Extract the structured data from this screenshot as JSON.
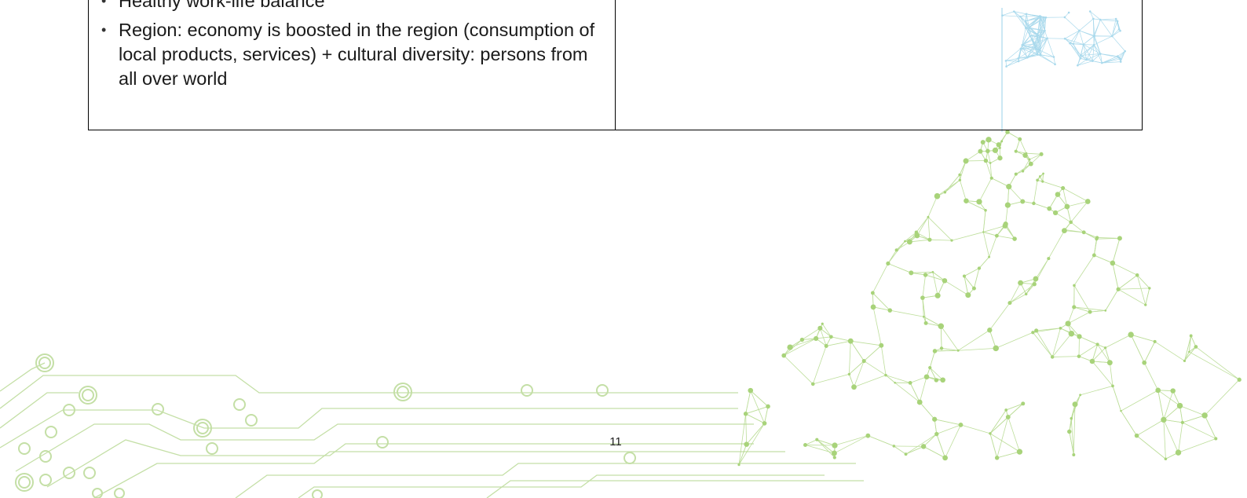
{
  "table": {
    "bullets": [
      "Healthy work-life balance",
      "Region: economy is boosted in the region (consumption of local products, services) + cultural diversity: persons from all over world"
    ]
  },
  "footer": {
    "page_number": "11"
  },
  "colors": {
    "network_green": "#a8d37a",
    "circuit_green": "#c4dfa6",
    "flag_blue": "#a9d9ec",
    "border": "#000000"
  }
}
